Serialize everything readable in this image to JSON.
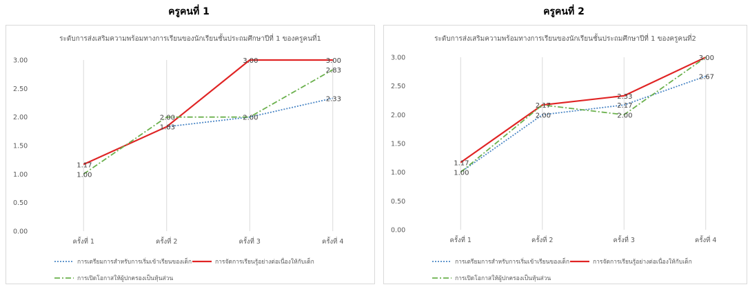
{
  "chart_data": [
    {
      "heading": "ครูคนที่ 1",
      "type": "line",
      "title": "ระดับการส่งเสริมความพร้อมทางการเรียนของนักเรียนชั้นประถมศึกษาปีที่ 1 ของครูคนที่1",
      "categories": [
        "ครั้งที่ 1",
        "ครั้งที่ 2",
        "ครั้งที่ 3",
        "ครั้งที่ 4"
      ],
      "ylim": [
        0,
        3
      ],
      "yticks": [
        "0.00",
        "0.50",
        "1.00",
        "1.50",
        "2.00",
        "2.50",
        "3.00"
      ],
      "grid": "vertical-category",
      "legend": "bottom",
      "series": [
        {
          "name": "การเตรียมการสำหรับการเริ่มเข้าเรียนของเด็ก",
          "values": [
            1.17,
            1.83,
            2.0,
            2.33
          ],
          "labels": [
            "",
            "1.83",
            "",
            "2.33"
          ],
          "color": "#4a86c5",
          "style": "dotted"
        },
        {
          "name": "การจัดการเรียนรู้อย่างต่อเนื่องให้กับเด็ก",
          "values": [
            1.17,
            1.83,
            3.0,
            3.0
          ],
          "labels": [
            "1.17",
            "",
            "3.00",
            "3.00"
          ],
          "color": "#e02424",
          "style": "solid"
        },
        {
          "name": "การเปิดโอกาสให้ผู้ปกครองเป็นหุ้นส่วน",
          "values": [
            1.0,
            2.0,
            2.0,
            2.83
          ],
          "labels": [
            "1.00",
            "2.00",
            "2.00",
            "2.83"
          ],
          "color": "#6ab04c",
          "style": "dashdot"
        }
      ]
    },
    {
      "heading": "ครูคนที่ 2",
      "type": "line",
      "title": "ระดับการส่งเสริมความพร้อมทางการเรียนของนักเรียนชั้นประถมศึกษาปีที่ 1 ของครูคนที่2",
      "categories": [
        "ครั้งที่ 1",
        "ครั้งที่ 2",
        "ครั้งที่ 3",
        "ครั้งที่ 4"
      ],
      "ylim": [
        0,
        3
      ],
      "yticks": [
        "0.00",
        "0.50",
        "1.00",
        "1.50",
        "2.00",
        "2.50",
        "3.00"
      ],
      "grid": "vertical-category",
      "legend": "bottom",
      "series": [
        {
          "name": "การเตรียมการสำหรับการเริ่มเข้าเรียนของเด็ก",
          "values": [
            1.0,
            2.0,
            2.17,
            2.67
          ],
          "labels": [
            "",
            "2.00",
            "2.17",
            "2.67"
          ],
          "color": "#4a86c5",
          "style": "dotted"
        },
        {
          "name": "การจัดการเรียนรู้อย่างต่อเนื่องให้กับเด็ก",
          "values": [
            1.17,
            2.17,
            2.33,
            3.0
          ],
          "labels": [
            "1.17",
            "2.17",
            "2.33",
            "3.00"
          ],
          "color": "#e02424",
          "style": "solid"
        },
        {
          "name": "การเปิดโอกาสให้ผู้ปกครองเป็นหุ้นส่วน",
          "values": [
            1.0,
            2.17,
            2.0,
            3.0
          ],
          "labels": [
            "1.00",
            "",
            "2.00",
            ""
          ],
          "color": "#6ab04c",
          "style": "dashdot"
        }
      ]
    }
  ]
}
